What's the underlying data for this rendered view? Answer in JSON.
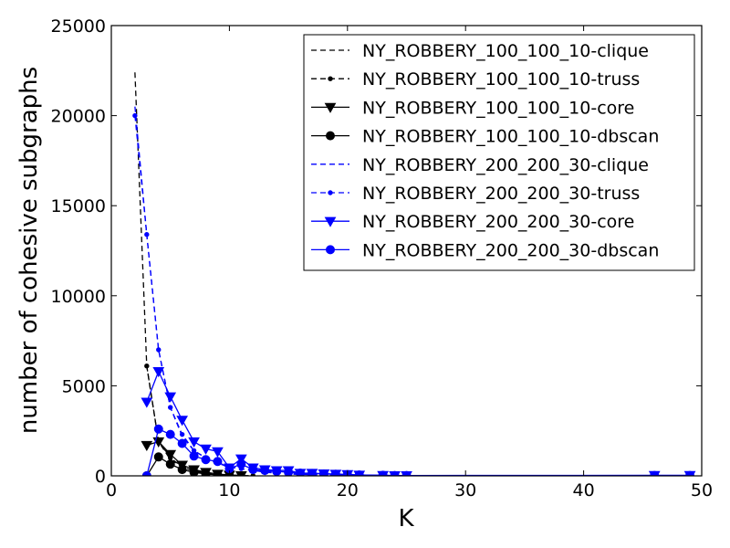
{
  "chart_data": {
    "type": "line",
    "xlabel": "K",
    "ylabel": "number of cohesive subgraphs",
    "xlim": [
      0,
      50
    ],
    "ylim": [
      0,
      25000
    ],
    "xticks": [
      0,
      10,
      20,
      30,
      40,
      50
    ],
    "yticks": [
      0,
      5000,
      10000,
      15000,
      20000,
      25000
    ],
    "xtick_labels": [
      "0",
      "10",
      "20",
      "30",
      "40",
      "50"
    ],
    "ytick_labels": [
      "0",
      "5000",
      "10000",
      "15000",
      "20000",
      "25000"
    ],
    "grid": false,
    "legend_position": "top-right",
    "series": [
      {
        "name": "NY_ROBBERY_100_100_10-clique",
        "color": "#000000",
        "dash": "dashed",
        "marker": "none",
        "x": [
          2,
          3,
          4,
          5,
          6,
          7,
          8,
          9,
          10
        ],
        "y": [
          22400,
          6100,
          1900,
          900,
          500,
          250,
          130,
          70,
          30
        ]
      },
      {
        "name": "NY_ROBBERY_100_100_10-truss",
        "color": "#000000",
        "dash": "dashed",
        "marker": "dot",
        "x": [
          3,
          4,
          5,
          6,
          7,
          8,
          9,
          10,
          11,
          12
        ],
        "y": [
          6100,
          1900,
          1000,
          500,
          300,
          150,
          80,
          40,
          20,
          10
        ]
      },
      {
        "name": "NY_ROBBERY_100_100_10-core",
        "color": "#000000",
        "dash": "solid",
        "marker": "triangle-down",
        "x": [
          3,
          4,
          5,
          6,
          7,
          8,
          9,
          10,
          11
        ],
        "y": [
          1700,
          1900,
          1200,
          600,
          350,
          200,
          100,
          50,
          20
        ]
      },
      {
        "name": "NY_ROBBERY_100_100_10-dbscan",
        "color": "#000000",
        "dash": "solid",
        "marker": "circle",
        "x": [
          3,
          4,
          5,
          6,
          7,
          8,
          9,
          10
        ],
        "y": [
          0,
          1050,
          650,
          350,
          200,
          100,
          50,
          20
        ]
      },
      {
        "name": "NY_ROBBERY_200_200_30-clique",
        "color": "#0000ff",
        "dash": "dashed",
        "marker": "none",
        "x": [
          2,
          3,
          4,
          5,
          6,
          7,
          8,
          9,
          10,
          11,
          12,
          13,
          14,
          15,
          16,
          17,
          18,
          19,
          20
        ],
        "y": [
          20500,
          13400,
          7000,
          3800,
          2200,
          1400,
          1000,
          700,
          500,
          400,
          300,
          200,
          150,
          100,
          80,
          60,
          40,
          30,
          20
        ]
      },
      {
        "name": "NY_ROBBERY_200_200_30-truss",
        "color": "#0000ff",
        "dash": "dashed",
        "marker": "dot",
        "x": [
          2,
          3,
          4,
          5,
          6,
          7,
          8,
          9,
          10,
          11,
          12,
          13,
          14,
          15,
          16,
          17,
          18,
          19,
          20,
          21,
          23,
          24,
          25,
          46,
          49
        ],
        "y": [
          20000,
          13400,
          7000,
          3800,
          2300,
          1400,
          1000,
          700,
          500,
          400,
          300,
          250,
          200,
          150,
          120,
          100,
          80,
          60,
          40,
          30,
          20,
          15,
          10,
          10,
          10
        ]
      },
      {
        "name": "NY_ROBBERY_200_200_30-core",
        "color": "#0000ff",
        "dash": "solid",
        "marker": "triangle-down",
        "x": [
          3,
          4,
          5,
          6,
          7,
          8,
          9,
          10,
          11,
          12,
          13,
          14,
          15,
          16,
          17,
          18,
          19,
          20,
          21,
          23,
          24,
          25,
          46,
          49
        ],
        "y": [
          4100,
          5800,
          4400,
          3100,
          1900,
          1500,
          1350,
          450,
          950,
          450,
          350,
          300,
          300,
          150,
          150,
          120,
          100,
          80,
          50,
          30,
          20,
          20,
          30,
          30
        ]
      },
      {
        "name": "NY_ROBBERY_200_200_30-dbscan",
        "color": "#0000ff",
        "dash": "solid",
        "marker": "circle",
        "x": [
          3,
          4,
          5,
          6,
          7,
          8,
          9,
          10,
          11,
          12,
          13,
          14,
          15,
          16,
          17,
          18,
          19,
          20,
          21,
          23,
          24,
          25,
          46,
          49
        ],
        "y": [
          0,
          2600,
          2300,
          1800,
          1100,
          900,
          800,
          400,
          650,
          350,
          300,
          250,
          200,
          150,
          130,
          110,
          90,
          70,
          50,
          30,
          20,
          20,
          20,
          20
        ]
      }
    ]
  }
}
